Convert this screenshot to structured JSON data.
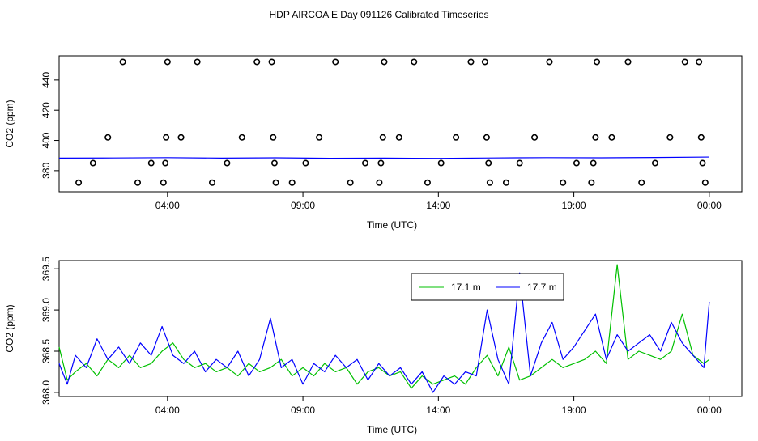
{
  "title": "HDP AIRCOA E  Day 091126  Calibrated Timeseries",
  "colors": {
    "axis": "#000000",
    "circle": "#000000",
    "series_green": "#00c000",
    "series_blue": "#0000ff"
  },
  "chart_data": [
    {
      "type": "scatter",
      "xlabel": "Time (UTC)",
      "ylabel": "CO2 (ppm)",
      "xlim": [
        0,
        25.2
      ],
      "ylim": [
        366,
        456
      ],
      "x_ticks": [
        {
          "value": 4,
          "label": "04:00"
        },
        {
          "value": 9,
          "label": "09:00"
        },
        {
          "value": 14,
          "label": "14:00"
        },
        {
          "value": 19,
          "label": "19:00"
        },
        {
          "value": 24,
          "label": "00:00"
        }
      ],
      "y_ticks": [
        {
          "value": 380,
          "label": "380"
        },
        {
          "value": 400,
          "label": "400"
        },
        {
          "value": 420,
          "label": "420"
        },
        {
          "value": 440,
          "label": "440"
        }
      ],
      "points": [
        [
          0.72,
          372
        ],
        [
          1.25,
          385
        ],
        [
          1.8,
          402
        ],
        [
          2.35,
          452
        ],
        [
          2.9,
          372
        ],
        [
          3.4,
          385
        ],
        [
          3.85,
          372
        ],
        [
          3.92,
          385
        ],
        [
          3.95,
          402
        ],
        [
          4.0,
          452
        ],
        [
          4.5,
          402
        ],
        [
          5.1,
          452
        ],
        [
          5.65,
          372
        ],
        [
          6.2,
          385
        ],
        [
          6.75,
          402
        ],
        [
          7.3,
          452
        ],
        [
          7.85,
          452
        ],
        [
          7.9,
          402
        ],
        [
          7.95,
          385
        ],
        [
          8.0,
          372
        ],
        [
          8.6,
          372
        ],
        [
          9.1,
          385
        ],
        [
          9.6,
          402
        ],
        [
          10.2,
          452
        ],
        [
          10.75,
          372
        ],
        [
          11.3,
          385
        ],
        [
          11.82,
          372
        ],
        [
          11.88,
          385
        ],
        [
          11.95,
          402
        ],
        [
          12.0,
          452
        ],
        [
          12.55,
          402
        ],
        [
          13.1,
          452
        ],
        [
          13.6,
          372
        ],
        [
          14.1,
          385
        ],
        [
          14.65,
          402
        ],
        [
          15.2,
          452
        ],
        [
          15.72,
          452
        ],
        [
          15.78,
          402
        ],
        [
          15.85,
          385
        ],
        [
          15.9,
          372
        ],
        [
          16.5,
          372
        ],
        [
          17.0,
          385
        ],
        [
          17.55,
          402
        ],
        [
          18.1,
          452
        ],
        [
          18.6,
          372
        ],
        [
          19.1,
          385
        ],
        [
          19.65,
          372
        ],
        [
          19.72,
          385
        ],
        [
          19.8,
          402
        ],
        [
          19.85,
          452
        ],
        [
          20.4,
          402
        ],
        [
          21.0,
          452
        ],
        [
          21.5,
          372
        ],
        [
          22.0,
          385
        ],
        [
          22.55,
          402
        ],
        [
          23.1,
          452
        ],
        [
          23.62,
          452
        ],
        [
          23.7,
          402
        ],
        [
          23.75,
          385
        ],
        [
          23.85,
          372
        ]
      ],
      "line": {
        "x": [
          0,
          2,
          4,
          6,
          8,
          10,
          12,
          14,
          16,
          18,
          20,
          22,
          24
        ],
        "y": [
          388.3,
          388.4,
          388.6,
          388.3,
          388.5,
          388.2,
          388.3,
          388.1,
          388.4,
          388.6,
          388.5,
          388.7,
          389.0
        ]
      }
    },
    {
      "type": "line",
      "xlabel": "Time (UTC)",
      "ylabel": "CO2 (ppm)",
      "xlim": [
        0,
        25.2
      ],
      "ylim": [
        367.95,
        369.6
      ],
      "x_ticks": [
        {
          "value": 4,
          "label": "04:00"
        },
        {
          "value": 9,
          "label": "09:00"
        },
        {
          "value": 14,
          "label": "14:00"
        },
        {
          "value": 19,
          "label": "19:00"
        },
        {
          "value": 24,
          "label": "00:00"
        }
      ],
      "y_ticks": [
        {
          "value": 368.0,
          "label": "368.0"
        },
        {
          "value": 368.5,
          "label": "368.5"
        },
        {
          "value": 369.0,
          "label": "369.0"
        },
        {
          "value": 369.5,
          "label": "369.5"
        }
      ],
      "legend": {
        "placement": "top-right"
      },
      "series": [
        {
          "name": "17.1 m",
          "color": "#00c000",
          "x": [
            0.0,
            0.3,
            0.6,
            1.0,
            1.4,
            1.8,
            2.2,
            2.6,
            3.0,
            3.4,
            3.8,
            4.2,
            4.6,
            5.0,
            5.4,
            5.8,
            6.2,
            6.6,
            7.0,
            7.4,
            7.8,
            8.2,
            8.6,
            9.0,
            9.4,
            9.8,
            10.2,
            10.6,
            11.0,
            11.4,
            11.8,
            12.2,
            12.6,
            13.0,
            13.4,
            13.8,
            14.2,
            14.6,
            15.0,
            15.4,
            15.8,
            16.2,
            16.6,
            17.0,
            17.4,
            17.8,
            18.2,
            18.6,
            19.0,
            19.4,
            19.8,
            20.2,
            20.6,
            21.0,
            21.4,
            21.8,
            22.2,
            22.6,
            23.0,
            23.4,
            23.8,
            24.0
          ],
          "y": [
            368.55,
            368.15,
            368.25,
            368.35,
            368.2,
            368.4,
            368.3,
            368.45,
            368.3,
            368.35,
            368.5,
            368.6,
            368.4,
            368.3,
            368.35,
            368.25,
            368.3,
            368.2,
            368.35,
            368.25,
            368.3,
            368.4,
            368.2,
            368.3,
            368.2,
            368.35,
            368.25,
            368.3,
            368.1,
            368.25,
            368.3,
            368.2,
            368.25,
            368.05,
            368.2,
            368.1,
            368.15,
            368.2,
            368.1,
            368.3,
            368.45,
            368.2,
            368.55,
            368.15,
            368.2,
            368.3,
            368.4,
            368.3,
            368.35,
            368.4,
            368.5,
            368.35,
            369.55,
            368.4,
            368.5,
            368.45,
            368.4,
            368.5,
            368.95,
            368.45,
            368.35,
            368.4
          ]
        },
        {
          "name": "17.7 m",
          "color": "#0000ff",
          "x": [
            0.0,
            0.3,
            0.6,
            1.0,
            1.4,
            1.8,
            2.2,
            2.6,
            3.0,
            3.4,
            3.8,
            4.2,
            4.6,
            5.0,
            5.4,
            5.8,
            6.2,
            6.6,
            7.0,
            7.4,
            7.8,
            8.2,
            8.6,
            9.0,
            9.4,
            9.8,
            10.2,
            10.6,
            11.0,
            11.4,
            11.8,
            12.2,
            12.6,
            13.0,
            13.4,
            13.8,
            14.2,
            14.6,
            15.0,
            15.4,
            15.8,
            16.2,
            16.6,
            17.0,
            17.4,
            17.8,
            18.2,
            18.6,
            19.0,
            19.4,
            19.8,
            20.2,
            20.6,
            21.0,
            21.4,
            21.8,
            22.2,
            22.6,
            23.0,
            23.4,
            23.8,
            24.0
          ],
          "y": [
            368.35,
            368.1,
            368.45,
            368.3,
            368.65,
            368.4,
            368.55,
            368.35,
            368.6,
            368.45,
            368.8,
            368.45,
            368.35,
            368.5,
            368.25,
            368.4,
            368.3,
            368.5,
            368.2,
            368.4,
            368.9,
            368.3,
            368.4,
            368.1,
            368.35,
            368.25,
            368.45,
            368.3,
            368.4,
            368.15,
            368.35,
            368.2,
            368.3,
            368.1,
            368.25,
            368.0,
            368.2,
            368.1,
            368.25,
            368.2,
            369.0,
            368.4,
            368.1,
            369.45,
            368.2,
            368.6,
            368.85,
            368.4,
            368.55,
            368.75,
            368.95,
            368.4,
            368.7,
            368.5,
            368.6,
            368.7,
            368.5,
            368.85,
            368.6,
            368.45,
            368.3,
            369.1
          ]
        }
      ]
    }
  ]
}
